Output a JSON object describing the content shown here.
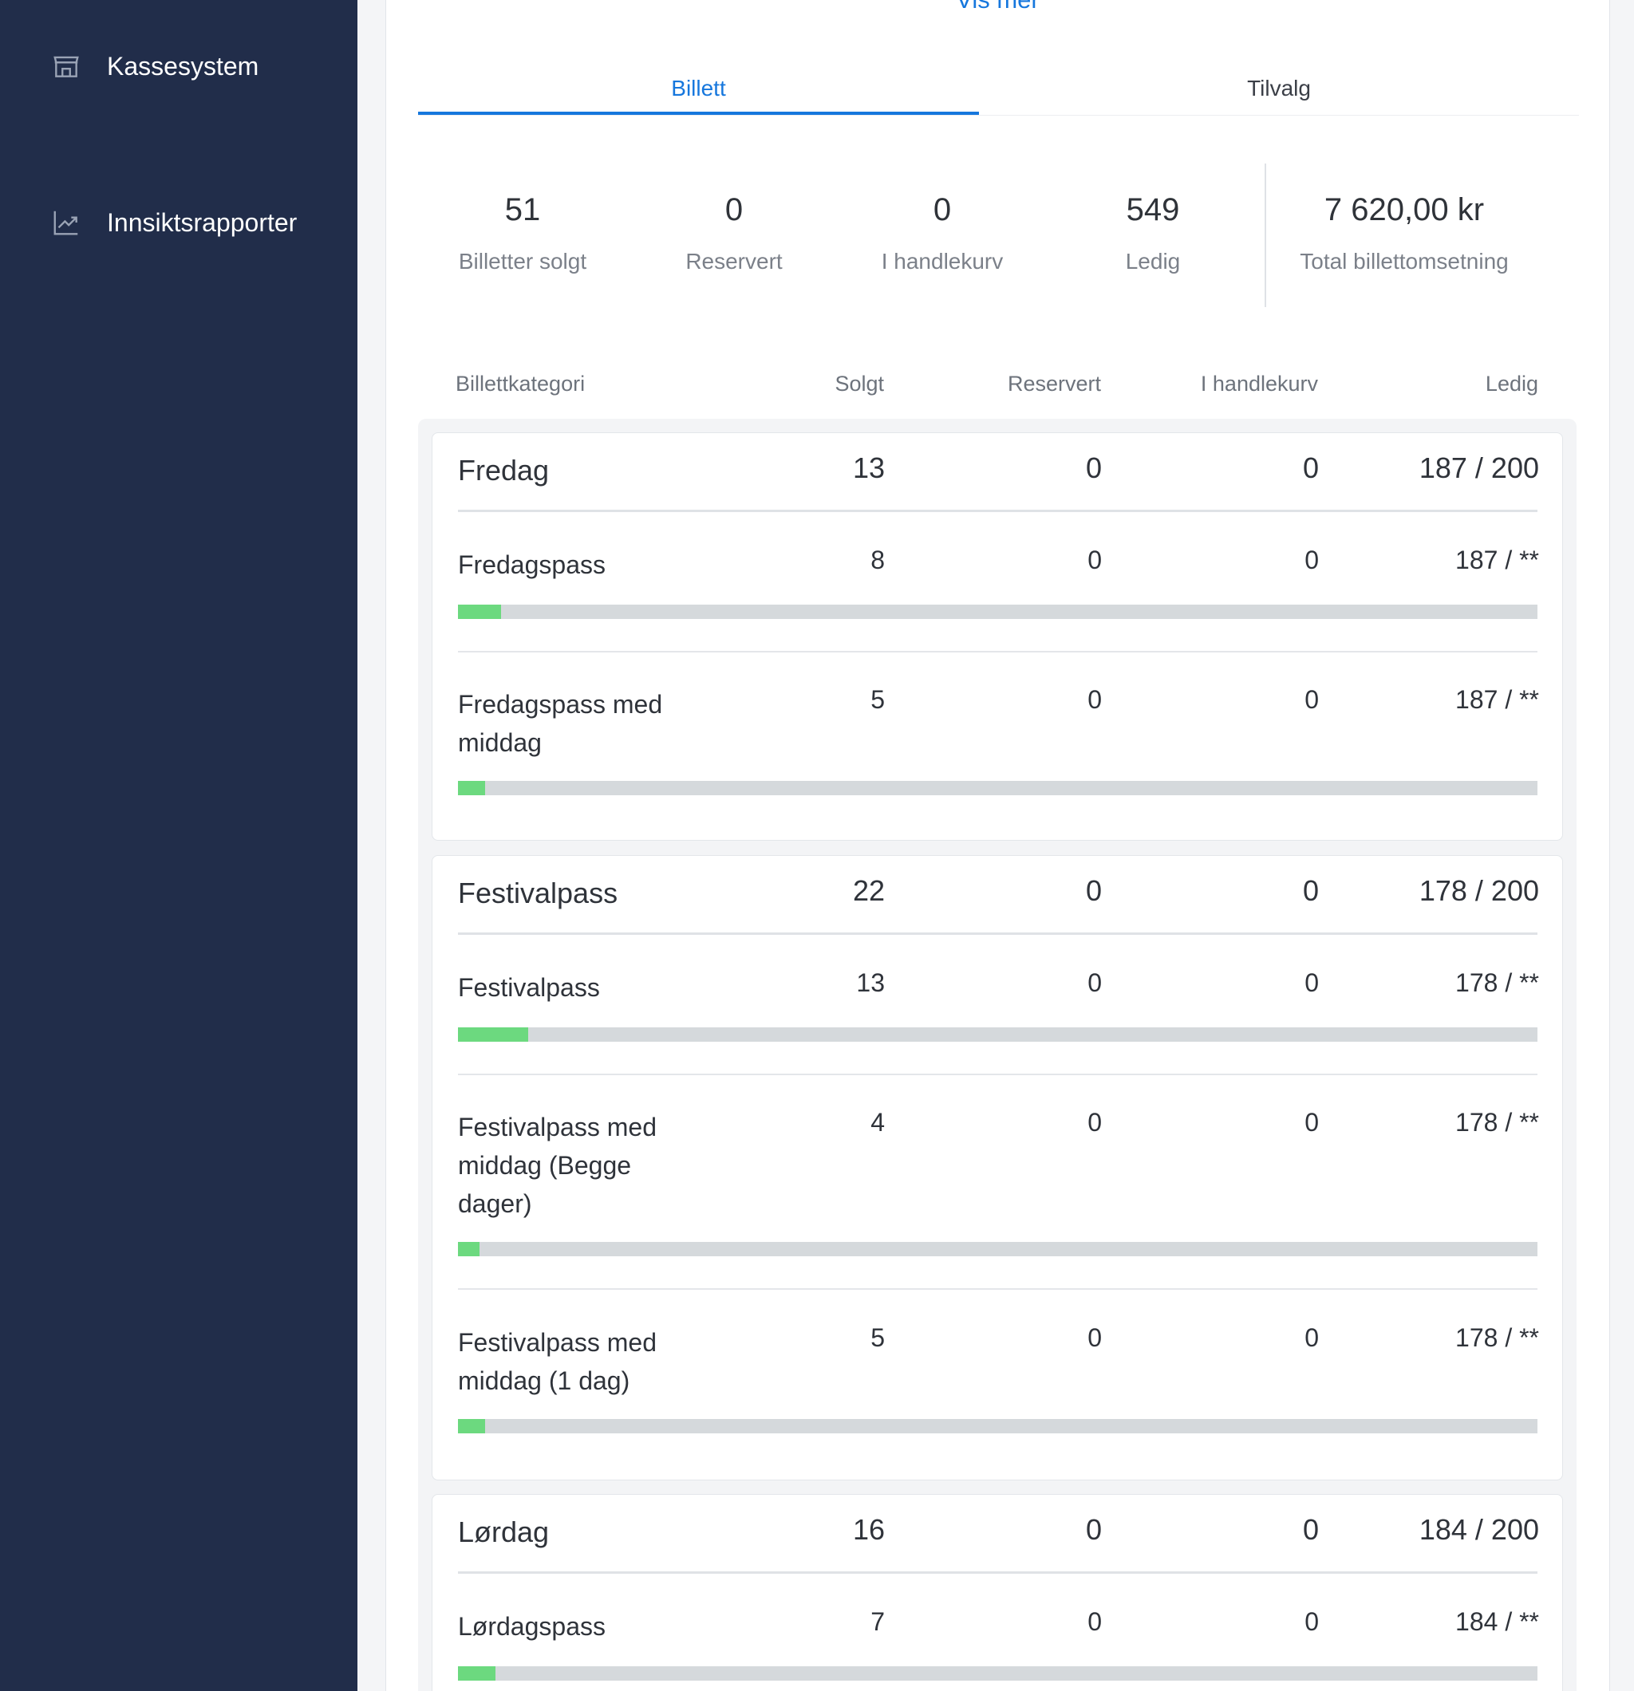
{
  "sidebar": {
    "items": [
      {
        "label": "Kassesystem",
        "icon": "store-icon"
      },
      {
        "label": "Innsiktsrapporter",
        "icon": "trending-chart-icon"
      }
    ]
  },
  "vis_mer": "Vis mer",
  "tabs": [
    {
      "label": "Billett",
      "active": true
    },
    {
      "label": "Tilvalg",
      "active": false
    }
  ],
  "stats": [
    {
      "value": "51",
      "label": "Billetter solgt"
    },
    {
      "value": "0",
      "label": "Reservert"
    },
    {
      "value": "0",
      "label": "I handlekurv"
    },
    {
      "value": "549",
      "label": "Ledig"
    },
    {
      "value": "7 620,00 kr",
      "label": "Total billettomsetning"
    }
  ],
  "table": {
    "headers": [
      "Billettkategori",
      "Solgt",
      "Reservert",
      "I handlekurv",
      "Ledig"
    ],
    "groups": [
      {
        "name": "Fredag",
        "sold": "13",
        "reserved": "0",
        "in_cart": "0",
        "available": "187 / 200",
        "items": [
          {
            "name": "Fredagspass",
            "sold": "8",
            "reserved": "0",
            "in_cart": "0",
            "available": "187 / **",
            "fill_fraction": 0.04
          },
          {
            "name": "Fredagspass med middag",
            "sold": "5",
            "reserved": "0",
            "in_cart": "0",
            "available": "187 / **",
            "fill_fraction": 0.025
          }
        ]
      },
      {
        "name": "Festivalpass",
        "sold": "22",
        "reserved": "0",
        "in_cart": "0",
        "available": "178 / 200",
        "items": [
          {
            "name": "Festivalpass",
            "sold": "13",
            "reserved": "0",
            "in_cart": "0",
            "available": "178 / **",
            "fill_fraction": 0.065
          },
          {
            "name": "Festivalpass med middag (Begge dager)",
            "sold": "4",
            "reserved": "0",
            "in_cart": "0",
            "available": "178 / **",
            "fill_fraction": 0.02
          },
          {
            "name": "Festivalpass med middag (1 dag)",
            "sold": "5",
            "reserved": "0",
            "in_cart": "0",
            "available": "178 / **",
            "fill_fraction": 0.025
          }
        ]
      },
      {
        "name": "Lørdag",
        "sold": "16",
        "reserved": "0",
        "in_cart": "0",
        "available": "184 / 200",
        "items": [
          {
            "name": "Lørdagspass",
            "sold": "7",
            "reserved": "0",
            "in_cart": "0",
            "available": "184 / **",
            "fill_fraction": 0.035
          }
        ]
      }
    ]
  },
  "colors": {
    "sidebar": "#212d4a",
    "accent": "#1677dd",
    "bar_fill": "#6cd97f",
    "bar_track": "#d5d9dc"
  }
}
